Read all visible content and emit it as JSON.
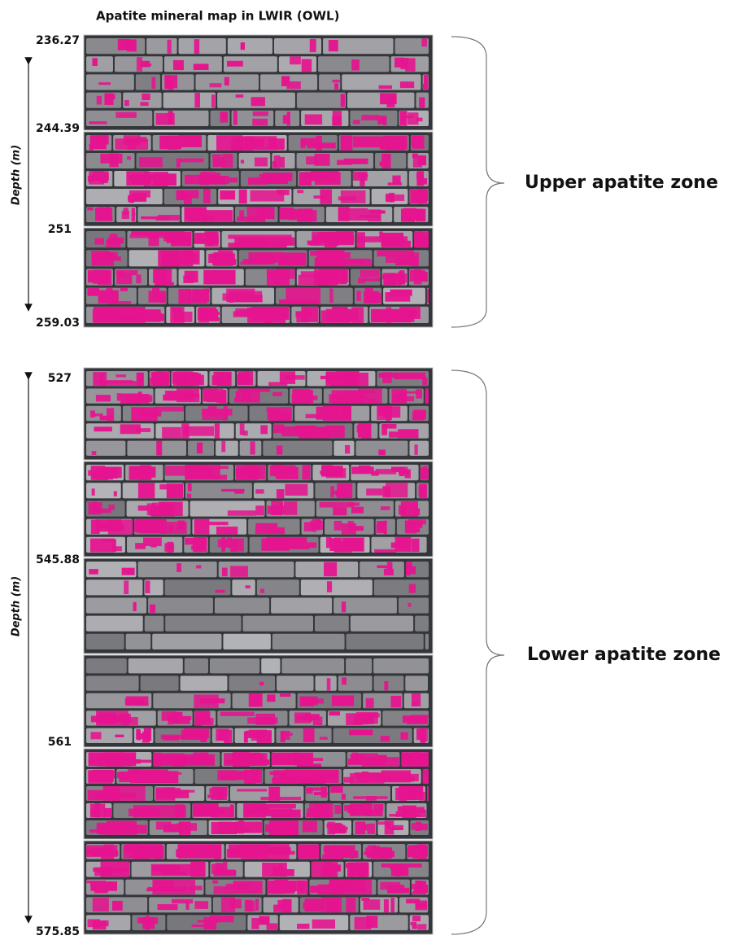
{
  "title": "Apatite mineral map in LWIR (OWL)",
  "panels": [
    {
      "axis_label": "Depth (m)",
      "depth_labels": [
        "236.27",
        "244.39",
        "251",
        "259.03"
      ],
      "zone_label": "Upper apatite zone"
    },
    {
      "axis_label": "Depth (m)",
      "depth_labels": [
        "527",
        "545.88",
        "561",
        "575.85"
      ],
      "zone_label": "Lower apatite zone"
    }
  ]
}
